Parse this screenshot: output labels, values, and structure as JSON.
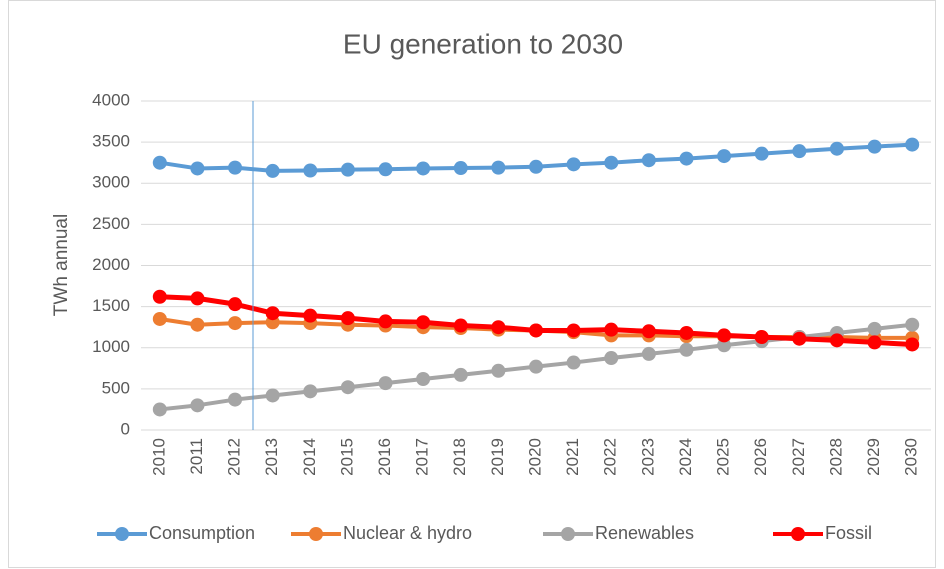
{
  "chart_data": {
    "type": "line",
    "title": "EU generation to 2030",
    "y_label": "TWh annual",
    "categories": [
      "2010",
      "2011",
      "2012",
      "2013",
      "2014",
      "2015",
      "2016",
      "2017",
      "2018",
      "2019",
      "2020",
      "2021",
      "2022",
      "2023",
      "2024",
      "2025",
      "2026",
      "2027",
      "2028",
      "2029",
      "2030"
    ],
    "series": [
      {
        "name": "Consumption",
        "color": "#5b9bd5",
        "values": [
          3250,
          3180,
          3190,
          3150,
          3155,
          3165,
          3170,
          3180,
          3185,
          3190,
          3200,
          3230,
          3250,
          3280,
          3300,
          3330,
          3360,
          3390,
          3420,
          3445,
          3470
        ]
      },
      {
        "name": "Nuclear & hydro",
        "color": "#ed7d31",
        "values": [
          1350,
          1280,
          1300,
          1310,
          1300,
          1280,
          1270,
          1250,
          1240,
          1220,
          1210,
          1190,
          1150,
          1150,
          1140,
          1140,
          1130,
          1130,
          1130,
          1120,
          1120
        ]
      },
      {
        "name": "Renewables",
        "color": "#a5a5a5",
        "values": [
          250,
          300,
          370,
          420,
          470,
          520,
          570,
          620,
          670,
          720,
          770,
          820,
          875,
          925,
          975,
          1030,
          1080,
          1130,
          1180,
          1230,
          1280
        ]
      },
      {
        "name": "Fossil",
        "color": "#ff0000",
        "values": [
          1620,
          1600,
          1530,
          1420,
          1390,
          1360,
          1320,
          1310,
          1270,
          1250,
          1210,
          1210,
          1220,
          1200,
          1180,
          1150,
          1130,
          1110,
          1090,
          1065,
          1040
        ]
      }
    ],
    "ylim": [
      0,
      4000
    ],
    "yticks": [
      0,
      500,
      1000,
      1500,
      2000,
      2500,
      3000,
      3500,
      4000
    ],
    "grid": true,
    "legend": "bottom"
  }
}
